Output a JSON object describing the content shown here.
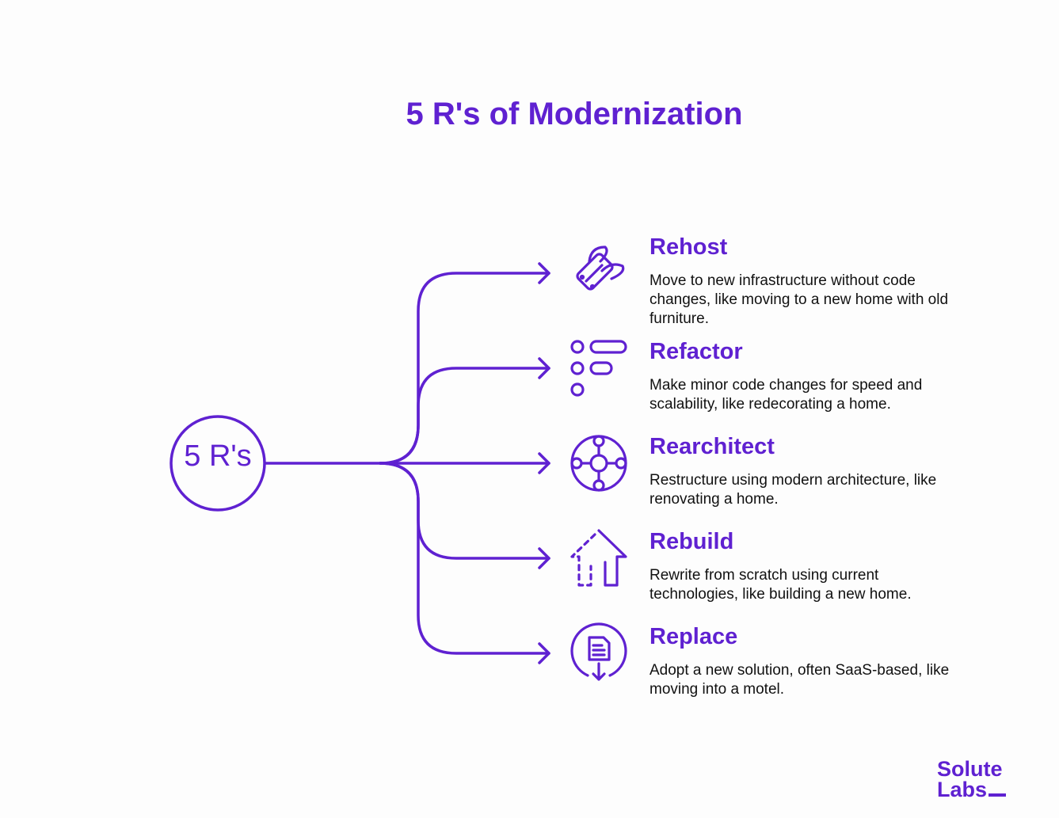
{
  "title": "5 R's of Modernization",
  "center": "5 R's",
  "accent": "#5f21d1",
  "items": [
    {
      "heading": "Rehost",
      "description": "Move to new infrastructure without code changes, like moving to a new home with old furniture.",
      "icon": "flying-server-icon"
    },
    {
      "heading": "Refactor",
      "description": "Make minor code changes for speed and scalability, like redecorating a home.",
      "icon": "list-icon"
    },
    {
      "heading": "Rearchitect",
      "description": "Restructure using modern architecture, like renovating a home.",
      "icon": "network-hub-icon"
    },
    {
      "heading": "Rebuild",
      "description": "Rewrite from scratch using current technologies, like building a new home.",
      "icon": "house-build-icon"
    },
    {
      "heading": "Replace",
      "description": "Adopt a new solution, often SaaS-based, like moving into a motel.",
      "icon": "document-download-icon"
    }
  ],
  "logo": {
    "line1": "Solute",
    "line2": "Labs"
  }
}
